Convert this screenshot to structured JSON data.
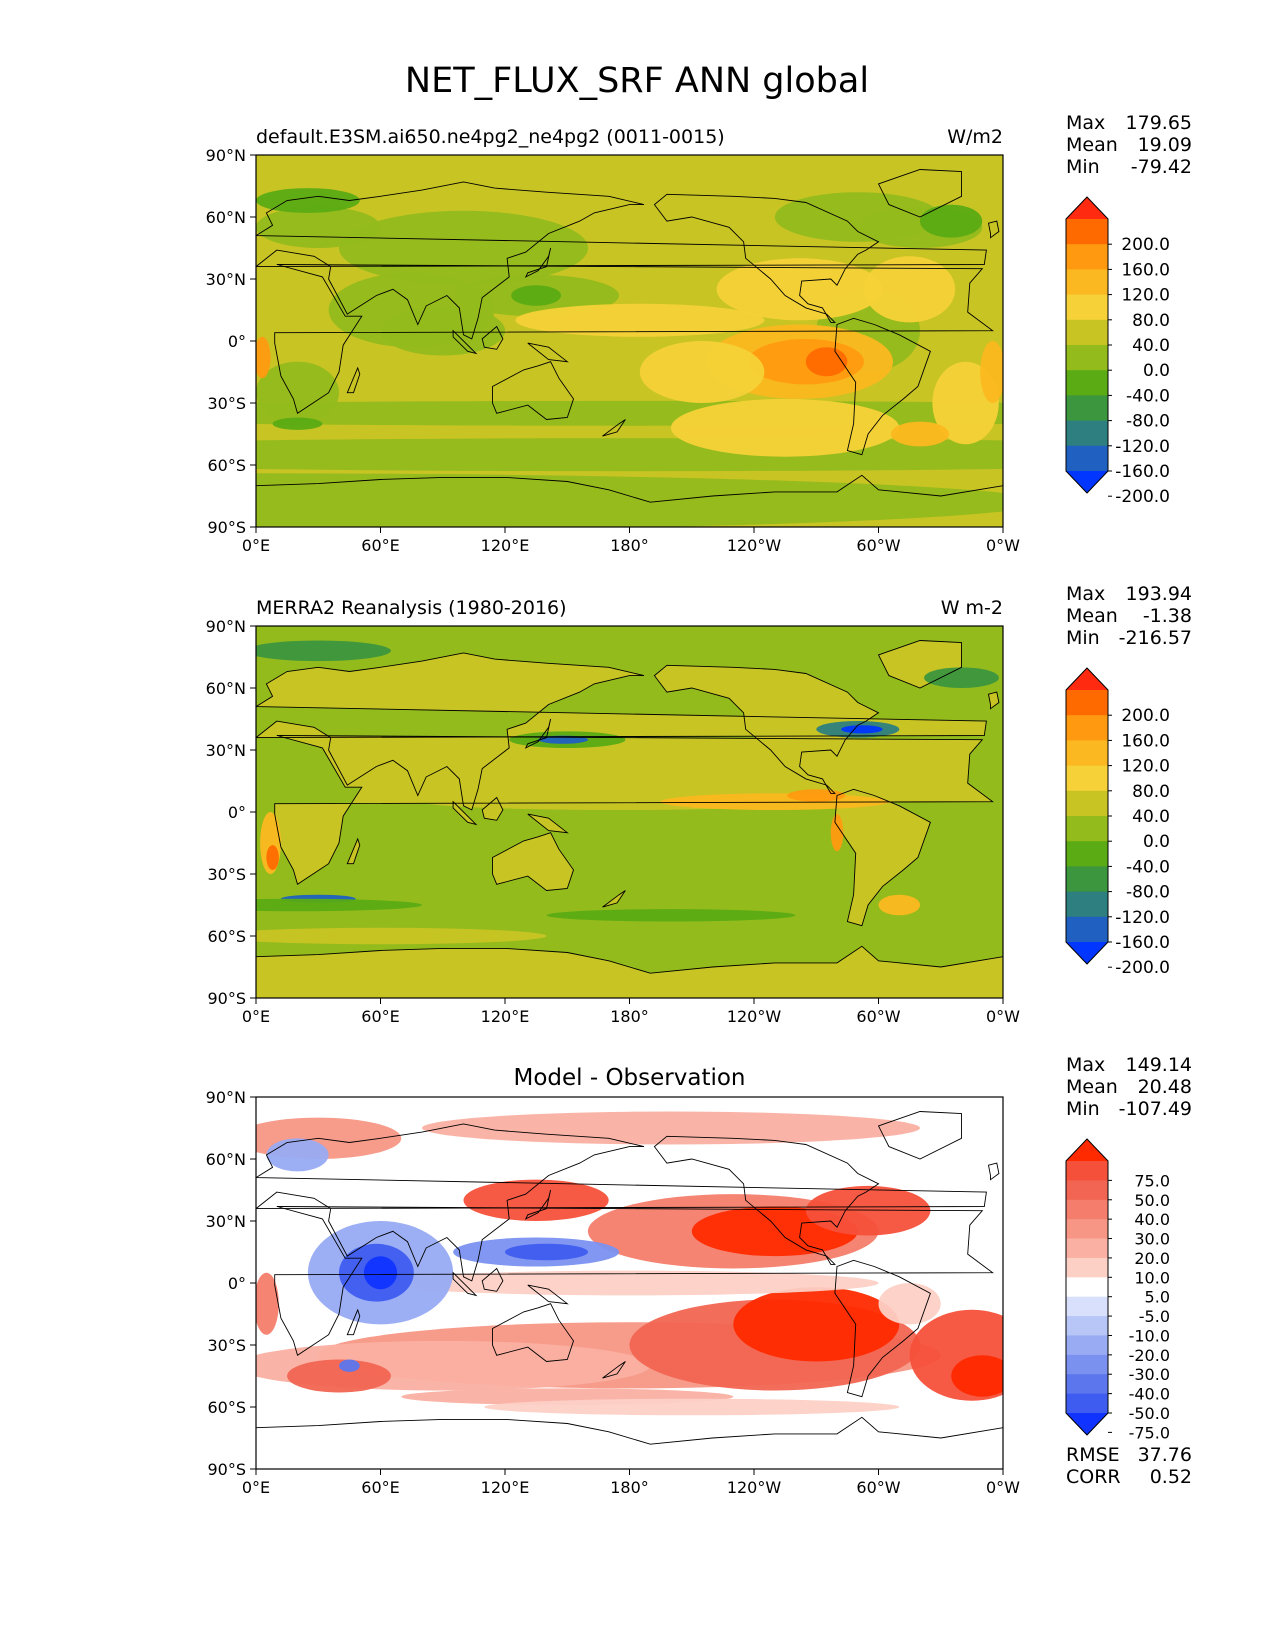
{
  "figure": {
    "title": "NET_FLUX_SRF ANN global"
  },
  "chart_data": [
    {
      "type": "heatmap",
      "name": "model",
      "title_left": "default.E3SM.ai650.ne4pg2_ne4pg2 (0011-0015)",
      "title_center": "",
      "units": "W/m2",
      "projection": "global lon-lat map, coastlines",
      "lat_ticks": [
        "90°N",
        "60°N",
        "30°N",
        "0°",
        "30°S",
        "60°S",
        "90°S"
      ],
      "lon_ticks": [
        "0°E",
        "60°E",
        "120°E",
        "180°",
        "120°W",
        "60°W",
        "0°W"
      ],
      "stats": [
        {
          "label": "Max",
          "value": "179.65"
        },
        {
          "label": "Mean",
          "value": "19.09"
        },
        {
          "label": "Min",
          "value": "-79.42"
        }
      ],
      "colorbar": {
        "labels": [
          "200.0",
          "160.0",
          "120.0",
          "80.0",
          "40.0",
          "0.0",
          "-40.0",
          "-80.0",
          "-120.0",
          "-160.0",
          "-200.0"
        ],
        "colors": [
          "#ff2a10",
          "#ff6a00",
          "#ff9a10",
          "#fbb820",
          "#f6d238",
          "#c8c424",
          "#93bb1c",
          "#5aab14",
          "#3c963e",
          "#2e7f80",
          "#1f60c0",
          "#0036ff"
        ],
        "extend": "both"
      },
      "stats_extra": []
    },
    {
      "type": "heatmap",
      "name": "observation",
      "title_left": "MERRA2 Reanalysis (1980-2016)",
      "title_center": "",
      "units": "W m-2",
      "projection": "global lon-lat map, coastlines",
      "lat_ticks": [
        "90°N",
        "60°N",
        "30°N",
        "0°",
        "30°S",
        "60°S",
        "90°S"
      ],
      "lon_ticks": [
        "0°E",
        "60°E",
        "120°E",
        "180°",
        "120°W",
        "60°W",
        "0°W"
      ],
      "stats": [
        {
          "label": "Max",
          "value": "193.94"
        },
        {
          "label": "Mean",
          "value": "-1.38"
        },
        {
          "label": "Min",
          "value": "-216.57"
        }
      ],
      "colorbar": {
        "labels": [
          "200.0",
          "160.0",
          "120.0",
          "80.0",
          "40.0",
          "0.0",
          "-40.0",
          "-80.0",
          "-120.0",
          "-160.0",
          "-200.0"
        ],
        "colors": [
          "#ff2a10",
          "#ff6a00",
          "#ff9a10",
          "#fbb820",
          "#f6d238",
          "#c8c424",
          "#93bb1c",
          "#5aab14",
          "#3c963e",
          "#2e7f80",
          "#1f60c0",
          "#0036ff"
        ],
        "extend": "both"
      },
      "stats_extra": []
    },
    {
      "type": "heatmap",
      "name": "difference",
      "title_left": "",
      "title_center": "Model - Observation",
      "units": "",
      "projection": "global lon-lat map, coastlines",
      "lat_ticks": [
        "90°N",
        "60°N",
        "30°N",
        "0°",
        "30°S",
        "60°S",
        "90°S"
      ],
      "lon_ticks": [
        "0°E",
        "60°E",
        "120°E",
        "180°",
        "120°W",
        "60°W",
        "0°W"
      ],
      "stats": [
        {
          "label": "Max",
          "value": "149.14"
        },
        {
          "label": "Mean",
          "value": "20.48"
        },
        {
          "label": "Min",
          "value": "-107.49"
        }
      ],
      "colorbar": {
        "labels": [
          "75.0",
          "50.0",
          "40.0",
          "30.0",
          "20.0",
          "10.0",
          "5.0",
          "-5.0",
          "-10.0",
          "-20.0",
          "-30.0",
          "-40.0",
          "-50.0",
          "-75.0"
        ],
        "colors": [
          "#ff2a00",
          "#f5503a",
          "#f26552",
          "#f47d6b",
          "#f79685",
          "#fab0a2",
          "#fdd0c6",
          "#ffffff",
          "#d8e0fb",
          "#b8c6f7",
          "#98abf3",
          "#7a91f0",
          "#5c77ee",
          "#3e5cef",
          "#1033ff"
        ],
        "extend": "both"
      },
      "stats_extra": [
        {
          "label": "RMSE",
          "value": "37.76"
        },
        {
          "label": "CORR",
          "value": "0.52"
        }
      ]
    }
  ]
}
